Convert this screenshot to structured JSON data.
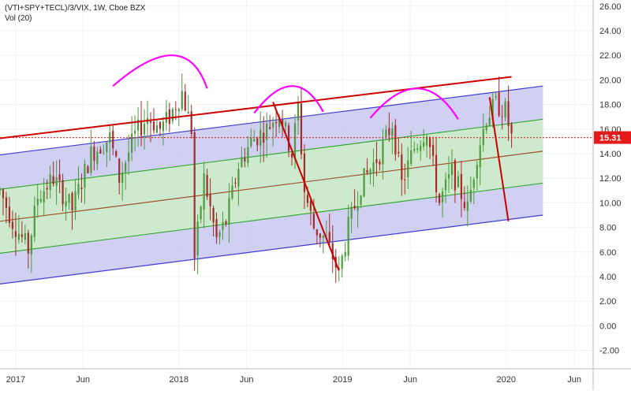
{
  "chart_data": {
    "type": "candlestick",
    "symbol_label": "(VTI+SPY+TECL)/3/VIX, 1W, Cboe BZX",
    "indicator_label": "Vol (20)",
    "x_ticks": [
      "2017",
      "Jun",
      "2018",
      "Jun",
      "2019",
      "Jun",
      "2020",
      "Jun"
    ],
    "y_ticks": [
      "26.00",
      "24.00",
      "22.00",
      "20.00",
      "18.00",
      "16.00",
      "14.00",
      "12.00",
      "10.00",
      "8.00",
      "6.00",
      "4.00",
      "2.00",
      "0.00",
      "-2.00"
    ],
    "ylim": [
      -3.5,
      26.5
    ],
    "xlim": [
      "2016-11-28",
      "2020-07-13"
    ],
    "last_price": "15.31",
    "last_value": 15.31,
    "grid": true,
    "colors": {
      "up": "#4f9a3c",
      "down": "#a52a2a",
      "channel_outer_fill": "#c8c8f0",
      "channel_inner_fill": "#cdeec8",
      "channel_outer_line": "#3d3dd0",
      "channel_inner_line": "#38a838",
      "channel_mid_line": "#a0522d",
      "trend_line": "#cc0000",
      "arc": "#ff00ff",
      "price_label_bg": "#e31b1b"
    },
    "channel": {
      "start_date": "2016-11-28",
      "end_date": "2020-03-23",
      "outer_upper": [
        13.9,
        19.5
      ],
      "inner_upper": [
        11.1,
        16.8
      ],
      "mid": [
        8.5,
        14.2
      ],
      "inner_lower": [
        5.9,
        11.6
      ],
      "outer_lower": [
        3.4,
        9.0
      ]
    },
    "trend_lines": [
      {
        "from": [
          "2016-11-28",
          15.25
        ],
        "to": [
          "2020-01-13",
          20.25
        ]
      },
      {
        "from": [
          "2018-07-30",
          18.2
        ],
        "to": [
          "2018-12-24",
          4.5
        ]
      },
      {
        "from": [
          "2019-11-25",
          18.6
        ],
        "to": [
          "2020-01-06",
          8.5
        ]
      }
    ],
    "arcs": [
      {
        "from": [
          "2017-08-07",
          19.5
        ],
        "peak": [
          "2017-12-18",
          22.0
        ],
        "to": [
          "2018-03-05",
          19.3
        ]
      },
      {
        "from": [
          "2018-06-18",
          17.3
        ],
        "peak": [
          "2018-09-10",
          19.5
        ],
        "to": [
          "2018-11-19",
          17.4
        ]
      },
      {
        "from": [
          "2019-03-04",
          16.9
        ],
        "peak": [
          "2019-06-17",
          19.3
        ],
        "to": [
          "2019-09-16",
          16.8
        ]
      }
    ],
    "anchors": [
      [
        "2016-11-28",
        11.0
      ],
      [
        "2016-12-26",
        8.5
      ],
      [
        "2017-01-30",
        6.2
      ],
      [
        "2017-02-20",
        10.5
      ],
      [
        "2017-03-27",
        12.0
      ],
      [
        "2017-05-08",
        9.5
      ],
      [
        "2017-06-19",
        14.0
      ],
      [
        "2017-07-31",
        15.3
      ],
      [
        "2017-08-21",
        12.0
      ],
      [
        "2017-09-25",
        15.5
      ],
      [
        "2017-10-23",
        17.0
      ],
      [
        "2017-11-20",
        16.0
      ],
      [
        "2017-12-11",
        17.0
      ],
      [
        "2018-01-08",
        19.0
      ],
      [
        "2018-01-29",
        16.0
      ],
      [
        "2018-02-05",
        5.5
      ],
      [
        "2018-02-26",
        12.0
      ],
      [
        "2018-03-26",
        7.0
      ],
      [
        "2018-04-16",
        8.5
      ],
      [
        "2018-05-14",
        13.0
      ],
      [
        "2018-06-11",
        15.0
      ],
      [
        "2018-07-16",
        16.0
      ],
      [
        "2018-08-13",
        17.5
      ],
      [
        "2018-09-10",
        14.0
      ],
      [
        "2018-09-24",
        17.8
      ],
      [
        "2018-10-08",
        11.0
      ],
      [
        "2018-10-29",
        8.0
      ],
      [
        "2018-11-26",
        7.0
      ],
      [
        "2018-12-24",
        4.2
      ],
      [
        "2019-01-14",
        8.0
      ],
      [
        "2019-02-11",
        11.5
      ],
      [
        "2019-03-25",
        14.0
      ],
      [
        "2019-04-22",
        16.5
      ],
      [
        "2019-05-13",
        11.5
      ],
      [
        "2019-06-10",
        14.5
      ],
      [
        "2019-07-08",
        16.0
      ],
      [
        "2019-08-05",
        10.0
      ],
      [
        "2019-09-02",
        12.5
      ],
      [
        "2019-10-07",
        9.5
      ],
      [
        "2019-10-28",
        14.0
      ],
      [
        "2019-11-18",
        17.0
      ],
      [
        "2019-12-09",
        18.0
      ],
      [
        "2019-12-30",
        17.5
      ],
      [
        "2020-01-13",
        15.3
      ]
    ]
  }
}
